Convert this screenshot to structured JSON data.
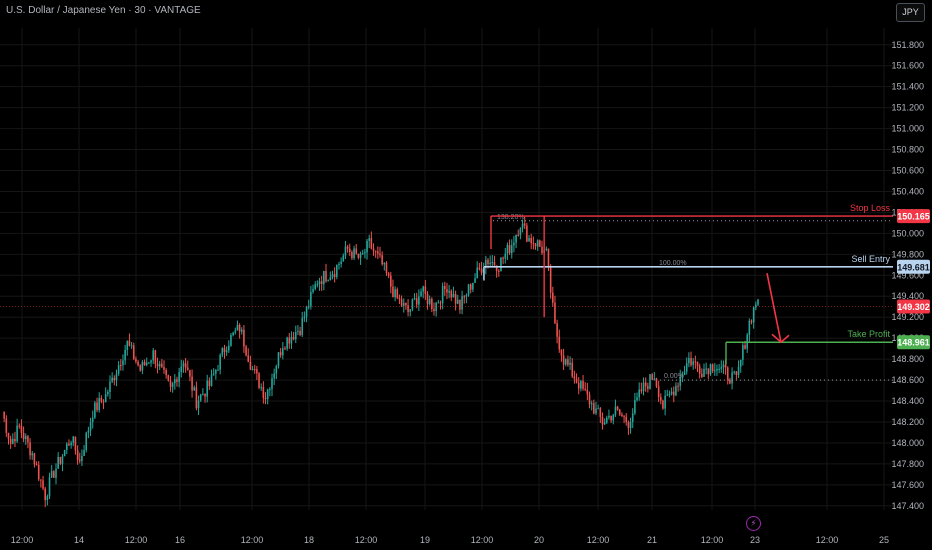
{
  "header": {
    "title": "U.S. Dollar / Japanese Yen · 30 · VANTAGE",
    "currency_button": "JPY"
  },
  "colors": {
    "background": "#000000",
    "up": "#26a69a",
    "down": "#ef5350",
    "stop_loss": "#f23645",
    "entry": "#b8d4ef",
    "take_profit": "#4caf50",
    "grid": "#161616"
  },
  "chart_data": {
    "type": "candlestick",
    "ylim": [
      147.36,
      151.96
    ],
    "y_ticks": [
      "151.800",
      "151.600",
      "151.400",
      "151.200",
      "151.000",
      "150.800",
      "150.600",
      "150.400",
      "150.200",
      "150.000",
      "149.800",
      "149.600",
      "149.400",
      "149.200",
      "149.000",
      "148.800",
      "148.600",
      "148.400",
      "148.200",
      "148.000",
      "147.800",
      "147.600",
      "147.400"
    ],
    "x_ticks": [
      "12:00",
      "14",
      "12:00",
      "16",
      "12:00",
      "18",
      "12:00",
      "19",
      "12:00",
      "20",
      "12:00",
      "21",
      "12:00",
      "23",
      "12:00",
      "25"
    ],
    "close_anchors": [
      [
        0,
        148.3
      ],
      [
        4,
        148.0
      ],
      [
        8,
        148.15
      ],
      [
        14,
        147.9
      ],
      [
        20,
        147.5
      ],
      [
        24,
        147.72
      ],
      [
        32,
        148.05
      ],
      [
        36,
        147.82
      ],
      [
        42,
        148.3
      ],
      [
        48,
        148.45
      ],
      [
        54,
        148.75
      ],
      [
        58,
        148.95
      ],
      [
        64,
        148.7
      ],
      [
        70,
        148.85
      ],
      [
        78,
        148.5
      ],
      [
        84,
        148.8
      ],
      [
        90,
        148.4
      ],
      [
        96,
        148.55
      ],
      [
        104,
        148.95
      ],
      [
        110,
        149.1
      ],
      [
        116,
        148.7
      ],
      [
        122,
        148.45
      ],
      [
        130,
        148.95
      ],
      [
        138,
        149.1
      ],
      [
        146,
        149.55
      ],
      [
        154,
        149.65
      ],
      [
        160,
        149.85
      ],
      [
        166,
        149.75
      ],
      [
        170,
        149.9
      ],
      [
        176,
        149.7
      ],
      [
        182,
        149.4
      ],
      [
        188,
        149.25
      ],
      [
        194,
        149.45
      ],
      [
        200,
        149.3
      ],
      [
        206,
        149.5
      ],
      [
        212,
        149.3
      ],
      [
        218,
        149.55
      ],
      [
        224,
        149.75
      ],
      [
        230,
        149.7
      ],
      [
        236,
        149.9
      ],
      [
        240,
        150.1
      ],
      [
        244,
        149.95
      ],
      [
        248,
        149.9
      ],
      [
        252,
        149.8
      ],
      [
        256,
        149.1
      ],
      [
        260,
        148.8
      ],
      [
        266,
        148.6
      ],
      [
        272,
        148.4
      ],
      [
        278,
        148.2
      ],
      [
        284,
        148.3
      ],
      [
        290,
        148.2
      ],
      [
        296,
        148.5
      ],
      [
        302,
        148.65
      ],
      [
        306,
        148.35
      ],
      [
        312,
        148.55
      ],
      [
        318,
        148.8
      ],
      [
        324,
        148.7
      ],
      [
        330,
        148.75
      ],
      [
        336,
        148.65
      ],
      [
        340,
        148.6
      ],
      [
        346,
        149.15
      ],
      [
        350,
        149.4
      ],
      [
        354,
        149.55
      ],
      [
        358,
        149.65
      ],
      [
        362,
        149.35
      ],
      [
        366,
        149.2
      ],
      [
        370,
        149.0
      ],
      [
        376,
        148.75
      ],
      [
        380,
        148.65
      ],
      [
        386,
        148.95
      ],
      [
        390,
        149.05
      ],
      [
        396,
        149.3
      ],
      [
        402,
        149.35
      ]
    ],
    "levels": {
      "stop_loss": {
        "label": "Stop Loss",
        "value": 150.165,
        "price_label": "150.165"
      },
      "sell_entry": {
        "label": "Sell Entry",
        "value": 149.681,
        "price_label": "149.681"
      },
      "take_profit": {
        "label": "Take Profit",
        "value": 148.961,
        "price_label": "148.961"
      },
      "current": {
        "value": 149.302,
        "price_label": "149.302"
      },
      "fib_138": {
        "label": "138.20%",
        "value": 150.12
      },
      "fib_100": {
        "label": "100.00%",
        "value": 149.68
      },
      "fib_0": {
        "label": "0.00%",
        "value": 148.6
      }
    },
    "legend_bolt": "⚡"
  }
}
